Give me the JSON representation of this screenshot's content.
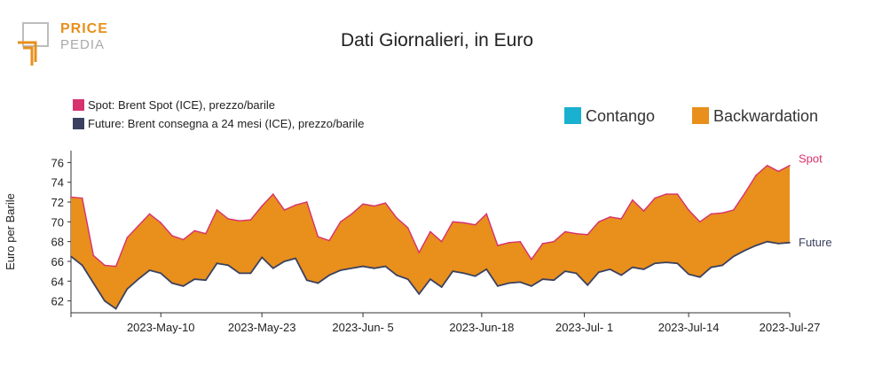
{
  "logo": {
    "line1": "PRICE",
    "line2": "PEDIA"
  },
  "chart_data": {
    "type": "area",
    "title": "Dati Giornalieri, in Euro",
    "ylabel": "Euro per Barile",
    "xlabel": "",
    "ylim": [
      60.8,
      77.2
    ],
    "yticks": [
      62,
      64,
      66,
      68,
      70,
      72,
      74,
      76
    ],
    "xticks": [
      "2023-May-10",
      "2023-May-23",
      "2023-Jun- 5",
      "2023-Jun-18",
      "2023-Jul- 1",
      "2023-Jul-14",
      "2023-Jul-27"
    ],
    "legend_series": [
      {
        "label": "Spot: Brent Spot (ICE), prezzo/barile",
        "color": "#d6326e"
      },
      {
        "label": "Future: Brent consegna a 24 mesi (ICE), prezzo/barile",
        "color": "#3a4160"
      }
    ],
    "legend_fill": [
      {
        "label": "Contango",
        "color": "#1ab0cf"
      },
      {
        "label": "Backwardation",
        "color": "#e88f1c"
      }
    ],
    "end_labels": {
      "spot": "Spot",
      "future": "Future"
    },
    "colors": {
      "spot": "#d6326e",
      "future": "#3a4160",
      "backwardation": "#e88f1c",
      "contango": "#1ab0cf"
    },
    "x": [
      "2023-Apr-28",
      "2023-May-1",
      "2023-May-2",
      "2023-May-3",
      "2023-May-4",
      "2023-May-5",
      "2023-May-8",
      "2023-May-9",
      "2023-May-10",
      "2023-May-11",
      "2023-May-12",
      "2023-May-15",
      "2023-May-16",
      "2023-May-17",
      "2023-May-18",
      "2023-May-19",
      "2023-May-22",
      "2023-May-23",
      "2023-May-24",
      "2023-May-25",
      "2023-May-26",
      "2023-May-29",
      "2023-May-30",
      "2023-May-31",
      "2023-Jun-1",
      "2023-Jun-2",
      "2023-Jun-5",
      "2023-Jun-6",
      "2023-Jun-7",
      "2023-Jun-8",
      "2023-Jun-9",
      "2023-Jun-12",
      "2023-Jun-13",
      "2023-Jun-14",
      "2023-Jun-15",
      "2023-Jun-16",
      "2023-Jun-19",
      "2023-Jun-20",
      "2023-Jun-21",
      "2023-Jun-22",
      "2023-Jun-23",
      "2023-Jun-26",
      "2023-Jun-27",
      "2023-Jun-28",
      "2023-Jun-29",
      "2023-Jun-30",
      "2023-Jul-3",
      "2023-Jul-4",
      "2023-Jul-5",
      "2023-Jul-6",
      "2023-Jul-7",
      "2023-Jul-10",
      "2023-Jul-11",
      "2023-Jul-12",
      "2023-Jul-13",
      "2023-Jul-14",
      "2023-Jul-17",
      "2023-Jul-18",
      "2023-Jul-19",
      "2023-Jul-20",
      "2023-Jul-21",
      "2023-Jul-24",
      "2023-Jul-25",
      "2023-Jul-26",
      "2023-Jul-27"
    ],
    "series": [
      {
        "name": "Spot",
        "values": [
          72.5,
          72.4,
          66.6,
          65.6,
          65.5,
          68.4,
          69.6,
          70.8,
          69.9,
          68.6,
          68.2,
          69.1,
          68.8,
          71.2,
          70.3,
          70.1,
          70.2,
          71.6,
          72.8,
          71.2,
          71.7,
          72.0,
          68.5,
          68.1,
          70.0,
          70.8,
          71.8,
          71.6,
          71.9,
          70.4,
          69.4,
          66.9,
          69.0,
          68.0,
          70.0,
          69.9,
          69.7,
          70.8,
          67.6,
          67.9,
          68.0,
          66.2,
          67.8,
          68.0,
          69.0,
          68.8,
          68.7,
          70.0,
          70.5,
          70.3,
          72.2,
          71.1,
          72.4,
          72.8,
          72.8,
          71.2,
          70.0,
          70.8,
          70.9,
          71.2,
          72.9,
          74.7,
          75.7,
          75.1,
          75.7
        ]
      },
      {
        "name": "Future",
        "values": [
          66.5,
          65.6,
          63.8,
          62.0,
          61.2,
          63.2,
          64.2,
          65.1,
          64.8,
          63.8,
          63.5,
          64.2,
          64.1,
          65.8,
          65.6,
          64.8,
          64.8,
          66.4,
          65.3,
          66.0,
          66.3,
          64.1,
          63.8,
          64.6,
          65.1,
          65.3,
          65.5,
          65.3,
          65.5,
          64.6,
          64.2,
          62.7,
          64.2,
          63.4,
          65.0,
          64.8,
          64.5,
          65.2,
          63.5,
          63.8,
          63.9,
          63.5,
          64.2,
          64.1,
          65.0,
          64.8,
          63.6,
          64.9,
          65.2,
          64.6,
          65.4,
          65.2,
          65.8,
          65.9,
          65.8,
          64.7,
          64.4,
          65.4,
          65.6,
          66.5,
          67.1,
          67.6,
          68.0,
          67.8,
          67.9
        ]
      }
    ]
  }
}
